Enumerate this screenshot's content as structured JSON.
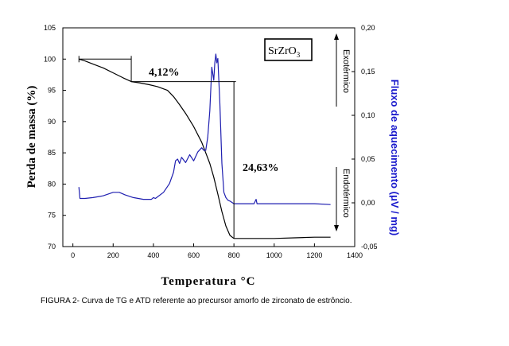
{
  "chart_data": {
    "type": "line",
    "xlabel": "Temperatura °C",
    "ylabel": "Perda de massa (%)",
    "y2label": "Fluxo de aquecimento (μV / mg)",
    "xlim": [
      -50,
      1400
    ],
    "ylim": [
      70,
      105
    ],
    "y2lim": [
      -0.05,
      0.2
    ],
    "x_ticks": [
      "0",
      "200",
      "400",
      "600",
      "800",
      "1000",
      "1200",
      "1400"
    ],
    "y_ticks": [
      "70",
      "75",
      "80",
      "85",
      "90",
      "95",
      "100",
      "105"
    ],
    "y2_ticks": [
      "-0,05",
      "0,00",
      "0,05",
      "0,10",
      "0,15",
      "0,20"
    ],
    "compound_label": {
      "base": "SrZrO",
      "sub": "3"
    },
    "annotations": {
      "loss1": "4,12%",
      "loss2": "24,63%",
      "exo": "Exotérmico",
      "endo": "Endotérmico"
    },
    "series": [
      {
        "axis": "left",
        "color": "#000000",
        "x": [
          30,
          60,
          100,
          150,
          200,
          250,
          290,
          330,
          380,
          420,
          470,
          500,
          530,
          560,
          600,
          640,
          680,
          700,
          720,
          740,
          760,
          780,
          800,
          850,
          900,
          1000,
          1100,
          1200,
          1280
        ],
        "y": [
          100.0,
          99.7,
          99.2,
          98.6,
          97.8,
          97.0,
          96.4,
          96.2,
          95.9,
          95.6,
          95.0,
          94.0,
          92.7,
          91.3,
          89.2,
          86.7,
          83.3,
          81.1,
          78.4,
          75.6,
          73.3,
          71.8,
          71.3,
          71.3,
          71.3,
          71.3,
          71.4,
          71.5,
          71.5
        ]
      },
      {
        "axis": "right",
        "color": "#1f1fb0",
        "x": [
          30,
          35,
          40,
          60,
          100,
          150,
          200,
          230,
          260,
          300,
          350,
          390,
          400,
          410,
          450,
          480,
          500,
          510,
          520,
          530,
          540,
          560,
          580,
          600,
          620,
          640,
          650,
          660,
          670,
          680,
          690,
          700,
          705,
          710,
          715,
          720,
          730,
          740,
          750,
          760,
          770,
          780,
          800,
          850,
          900,
          910,
          915,
          920,
          950,
          1000,
          1100,
          1200,
          1280
        ],
        "y": [
          0.018,
          0.005,
          0.005,
          0.005,
          0.006,
          0.008,
          0.012,
          0.012,
          0.009,
          0.006,
          0.004,
          0.004,
          0.006,
          0.005,
          0.012,
          0.022,
          0.035,
          0.048,
          0.05,
          0.045,
          0.052,
          0.046,
          0.055,
          0.048,
          0.058,
          0.063,
          0.06,
          0.06,
          0.075,
          0.105,
          0.155,
          0.14,
          0.16,
          0.17,
          0.16,
          0.165,
          0.115,
          0.045,
          0.012,
          0.006,
          0.003,
          0.002,
          -0.001,
          -0.001,
          -0.001,
          0.004,
          -0.001,
          -0.001,
          -0.001,
          -0.001,
          -0.001,
          -0.001,
          -0.002
        ]
      }
    ]
  },
  "caption": "FIGURA 2- Curva de TG e ATD referente ao precursor amorfo de zirconato de estrôncio."
}
